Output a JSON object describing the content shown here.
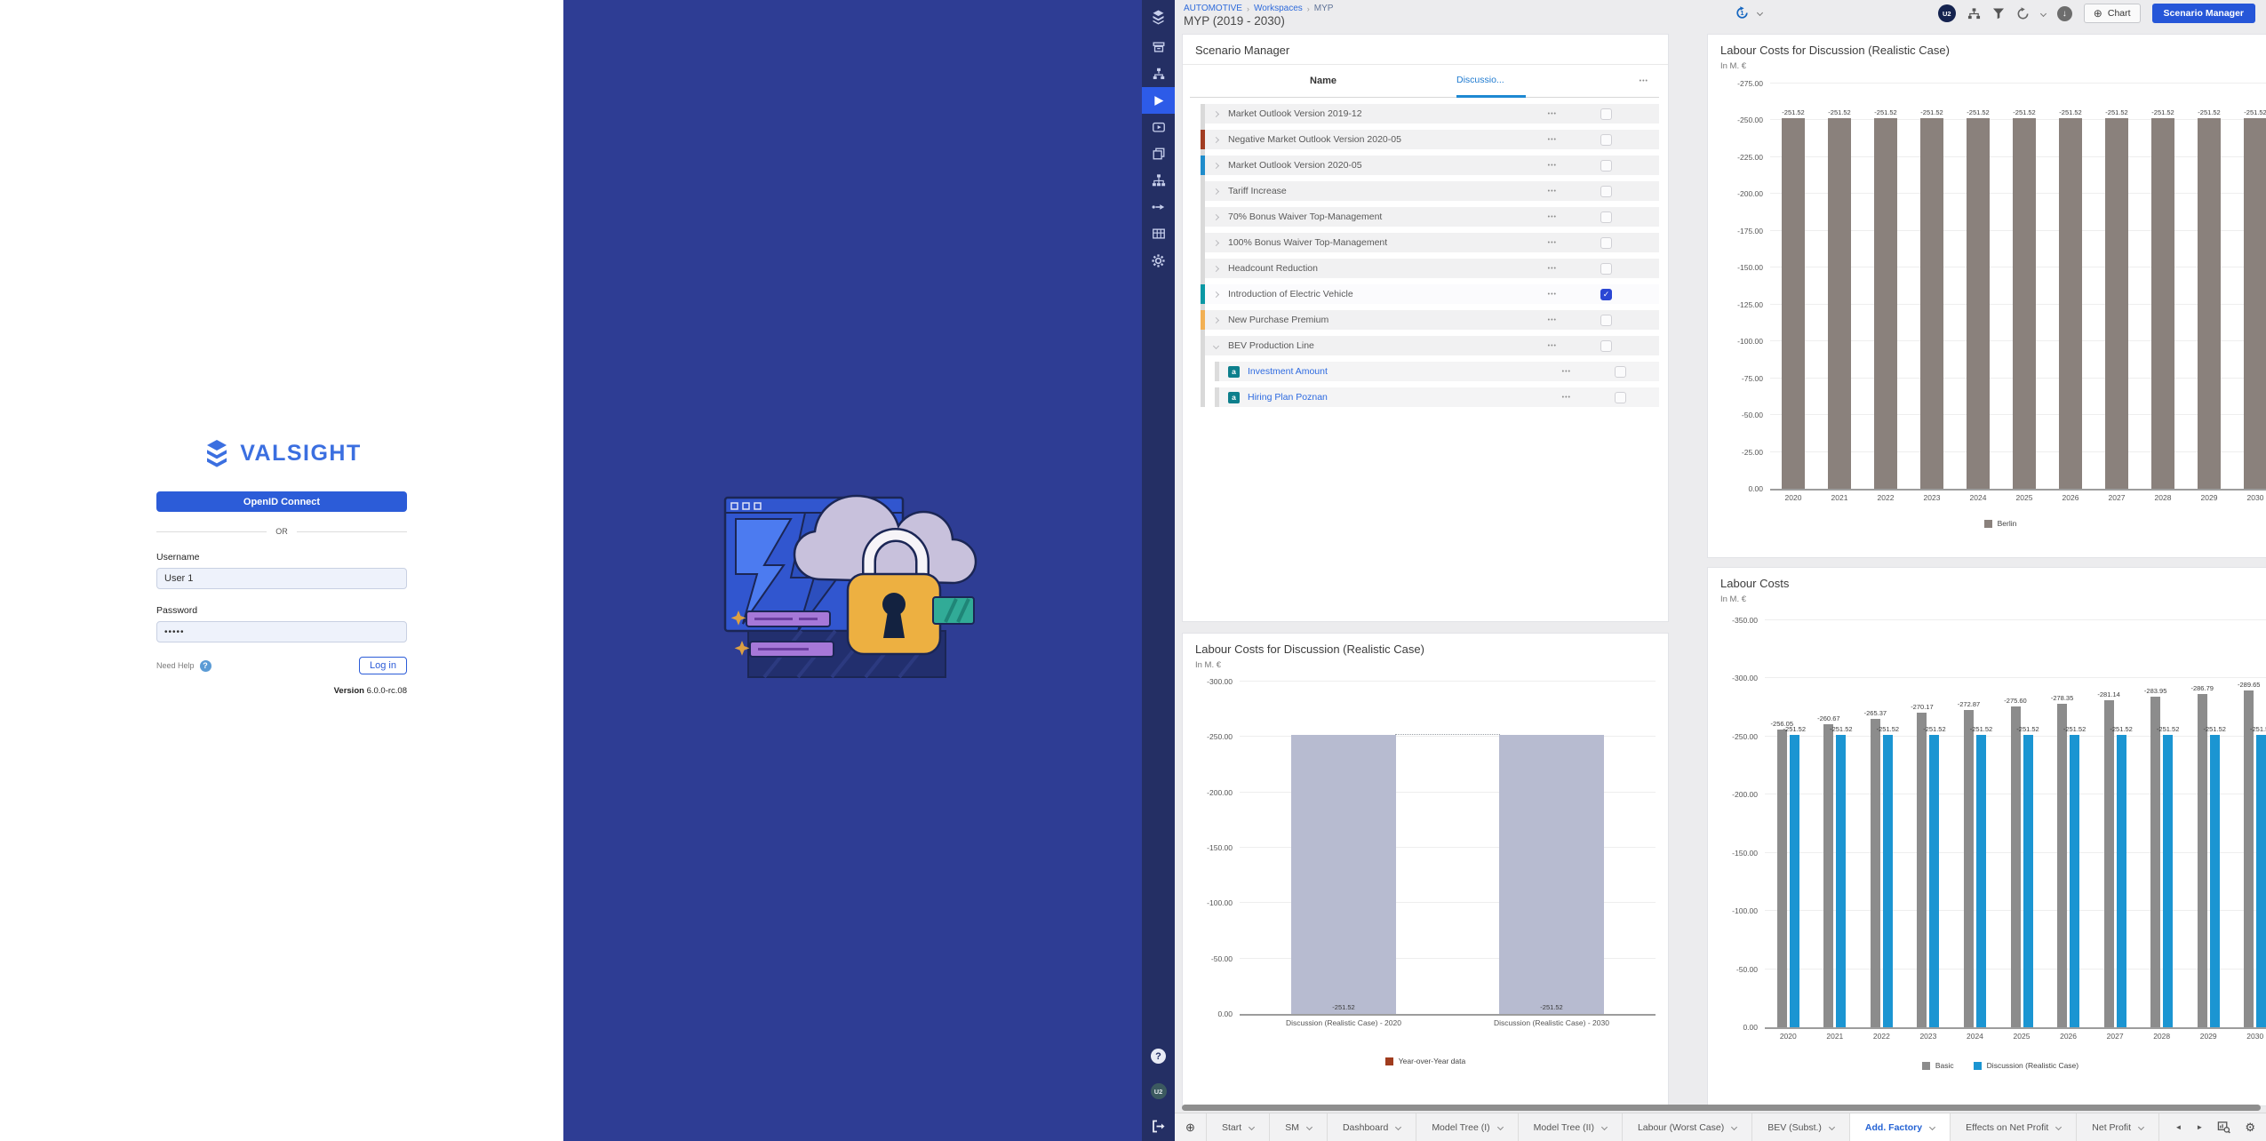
{
  "login": {
    "brand": "VALSIGHT",
    "openid_button": "OpenID Connect",
    "or_divider": "OR",
    "username_label": "Username",
    "username_value": "User 1",
    "password_label": "Password",
    "password_value": "•••••",
    "need_help": "Need Help",
    "help_icon": "?",
    "login_button": "Log in",
    "version_label": "Version",
    "version_value": "6.0.0-rc.08"
  },
  "sidebar": {
    "items": [
      {
        "name": "layers-logo",
        "active": false
      },
      {
        "name": "archive",
        "active": false
      },
      {
        "name": "model-tree",
        "active": false
      },
      {
        "name": "play",
        "active": true
      },
      {
        "name": "video",
        "active": false
      },
      {
        "name": "windows",
        "active": false
      },
      {
        "name": "hierarchy",
        "active": false
      },
      {
        "name": "flow",
        "active": false
      },
      {
        "name": "table",
        "active": false
      },
      {
        "name": "settings",
        "active": false
      }
    ],
    "bottom": {
      "help": "?",
      "user_badge": "U2"
    }
  },
  "header": {
    "breadcrumb": [
      "AUTOMOTIVE",
      "Workspaces",
      "MYP"
    ],
    "title": "MYP (2019 - 2030)",
    "history_count": "1",
    "avatar": "U2",
    "chart_button": "Chart",
    "scenario_manager_button": "Scenario Manager",
    "icon_names": [
      "history-icon",
      "org-chart-icon",
      "filter-icon",
      "refresh-icon",
      "caret-down-icon",
      "download-icon"
    ]
  },
  "scenario_manager": {
    "title": "Scenario Manager",
    "name_column": "Name",
    "discussion_column": "Discussio...",
    "more_column": "•••",
    "row_dots": "•••",
    "rows": [
      {
        "name": "Market Outlook Version 2019-12",
        "bar_color": "",
        "checked": false,
        "selected": false
      },
      {
        "name": "Negative Market Outlook Version 2020-05",
        "bar_color": "#a13c22",
        "checked": false,
        "selected": false
      },
      {
        "name": "Market Outlook Version 2020-05",
        "bar_color": "#1f8ccb",
        "checked": false,
        "selected": false
      },
      {
        "name": "Tariff Increase",
        "bar_color": "",
        "checked": false,
        "selected": false
      },
      {
        "name": "70% Bonus Waiver Top-Management",
        "bar_color": "",
        "checked": false,
        "selected": false
      },
      {
        "name": "100% Bonus Waiver Top-Management",
        "bar_color": "",
        "checked": false,
        "selected": false
      },
      {
        "name": "Headcount Reduction",
        "bar_color": "",
        "checked": false,
        "selected": false
      },
      {
        "name": "Introduction of Electric Vehicle",
        "bar_color": "#0a98a4",
        "checked": true,
        "selected": true
      },
      {
        "name": "New Purchase Premium",
        "bar_color": "#f2b054",
        "checked": false,
        "selected": false
      },
      {
        "name": "BEV Production Line",
        "bar_color": "",
        "checked": false,
        "selected": false,
        "expanded": true,
        "children": [
          {
            "name": "Investment Amount",
            "badge": "a"
          },
          {
            "name": "Hiring Plan Poznan",
            "badge": "a"
          }
        ]
      }
    ]
  },
  "chart_data": [
    {
      "id": "labour-costs-discussion-yearly",
      "type": "bar",
      "title": "Labour Costs for Discussion (Realistic Case)",
      "subtitle": "In M. €",
      "categories": [
        "2020",
        "2021",
        "2022",
        "2023",
        "2024",
        "2025",
        "2026",
        "2027",
        "2028",
        "2029",
        "2030"
      ],
      "series": [
        {
          "name": "Berlin",
          "color": "#8a817c",
          "values": [
            -251.52,
            -251.52,
            -251.52,
            -251.52,
            -251.52,
            -251.52,
            -251.52,
            -251.52,
            -251.52,
            -251.52,
            -251.52
          ]
        }
      ],
      "ylim": [
        -275,
        0
      ],
      "yticks": [
        -275,
        -250,
        -225,
        -200,
        -175,
        -150,
        -125,
        -100,
        -75,
        -50,
        -25,
        0
      ],
      "legend_position": "bottom",
      "grid": true
    },
    {
      "id": "labour-costs-discussion-yoy",
      "type": "bar",
      "title": "Labour Costs for Discussion (Realistic Case)",
      "subtitle": "In M. €",
      "categories": [
        "Discussion (Realistic Case) - 2020",
        "Discussion (Realistic Case) - 2030"
      ],
      "series": [
        {
          "name": "Year-over-Year data",
          "color": "#b7bbd0",
          "legend_color": "#a03c1e",
          "values": [
            -251.52,
            -251.52
          ]
        }
      ],
      "ylim": [
        -300,
        0
      ],
      "yticks": [
        -300,
        -250,
        -200,
        -150,
        -100,
        -50,
        0
      ],
      "value_label_position": "inside-bottom",
      "connector_dotted": true,
      "legend_position": "bottom",
      "grid": true
    },
    {
      "id": "labour-costs-basic-vs-discussion",
      "type": "bar",
      "title": "Labour Costs",
      "subtitle": "In M. €",
      "categories": [
        "2020",
        "2021",
        "2022",
        "2023",
        "2024",
        "2025",
        "2026",
        "2027",
        "2028",
        "2029",
        "2030"
      ],
      "series": [
        {
          "name": "Basic",
          "color": "#8c8c8c",
          "values": [
            -256.05,
            -260.67,
            -265.37,
            -270.17,
            -272.87,
            -275.6,
            -278.35,
            -281.14,
            -283.95,
            -286.79,
            -289.65
          ]
        },
        {
          "name": "Discussion (Realistic Case)",
          "color": "#1b95d2",
          "values": [
            -251.52,
            -251.52,
            -251.52,
            -251.52,
            -251.52,
            -251.52,
            -251.52,
            -251.52,
            -251.52,
            -251.52,
            -251.52
          ]
        }
      ],
      "ylim": [
        -350,
        0
      ],
      "yticks": [
        -350,
        -300,
        -250,
        -200,
        -150,
        -100,
        -50,
        0
      ],
      "legend_position": "bottom",
      "grid": true
    }
  ],
  "tabs": {
    "add_label": "⊕",
    "items": [
      "Start",
      "SM",
      "Dashboard",
      "Model Tree (I)",
      "Model Tree (II)",
      "Labour (Worst Case)",
      "BEV (Subst.)",
      "Add. Factory",
      "Effects on Net Profit",
      "Net Profit"
    ],
    "active": "Add. Factory",
    "nav_left": "◄",
    "nav_right": "►",
    "right_icon_names": [
      "chart-search-icon",
      "settings-icon"
    ],
    "settings_glyph": "⚙"
  }
}
